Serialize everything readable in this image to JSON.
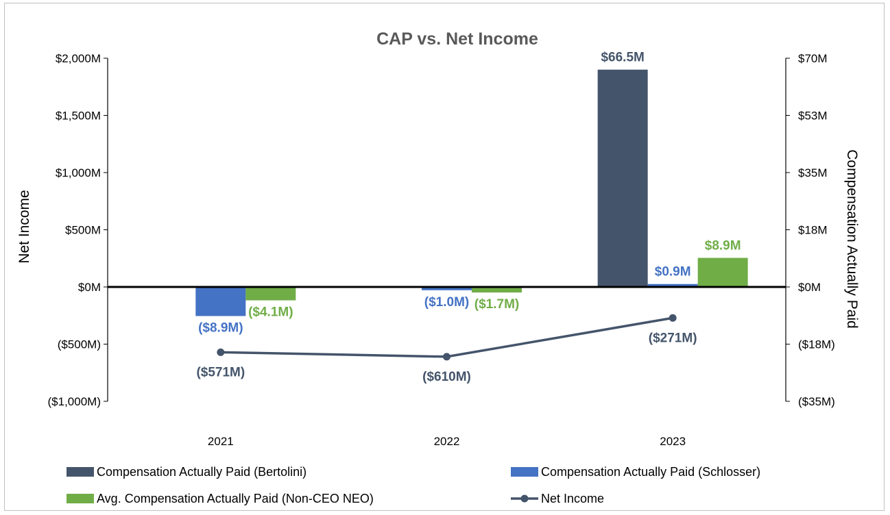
{
  "chart_data": {
    "type": "bar",
    "title": "CAP vs. Net Income",
    "categories": [
      "2021",
      "2022",
      "2023"
    ],
    "y_left": {
      "label": "Net Income",
      "range": [
        -1000,
        2000
      ],
      "ticks": [
        2000,
        1500,
        1000,
        500,
        0,
        -500,
        -1000
      ],
      "tick_labels": [
        "$2,000M",
        "$1,500M",
        "$1,000M",
        "$500M",
        "$0M",
        "($500M)",
        "($1,000M)"
      ]
    },
    "y_right": {
      "label": "Compensation Actually Paid",
      "range": [
        -35,
        70
      ],
      "ticks": [
        70,
        52.5,
        35,
        17.5,
        0,
        -17.5,
        -35
      ],
      "tick_labels": [
        "$70M",
        "$53M",
        "$35M",
        "$18M",
        "$0M",
        "($18M)",
        "($35M)"
      ]
    },
    "series": [
      {
        "name": "Compensation Actually Paid (Bertolini)",
        "kind": "bar",
        "axis": "right",
        "color": "#44546a",
        "values": [
          null,
          null,
          66.5
        ],
        "labels": [
          "",
          "",
          "$66.5M"
        ]
      },
      {
        "name": "Compensation Actually Paid (Schlosser)",
        "kind": "bar",
        "axis": "right",
        "color": "#4472c4",
        "values": [
          -8.9,
          -1.0,
          0.9
        ],
        "labels": [
          "($8.9M)",
          "($1.0M)",
          "$0.9M"
        ]
      },
      {
        "name": "Avg. Compensation Actually Paid (Non-CEO NEO)",
        "kind": "bar",
        "axis": "right",
        "color": "#70ad47",
        "values": [
          -4.1,
          -1.7,
          8.9
        ],
        "labels": [
          "($4.1M)",
          "($1.7M)",
          "$8.9M"
        ]
      },
      {
        "name": "Net Income",
        "kind": "line",
        "axis": "left",
        "color": "#44546a",
        "values": [
          -571,
          -610,
          -271
        ],
        "labels": [
          "($571M)",
          "($610M)",
          "($271M)"
        ]
      }
    ],
    "legend_position": "bottom"
  }
}
